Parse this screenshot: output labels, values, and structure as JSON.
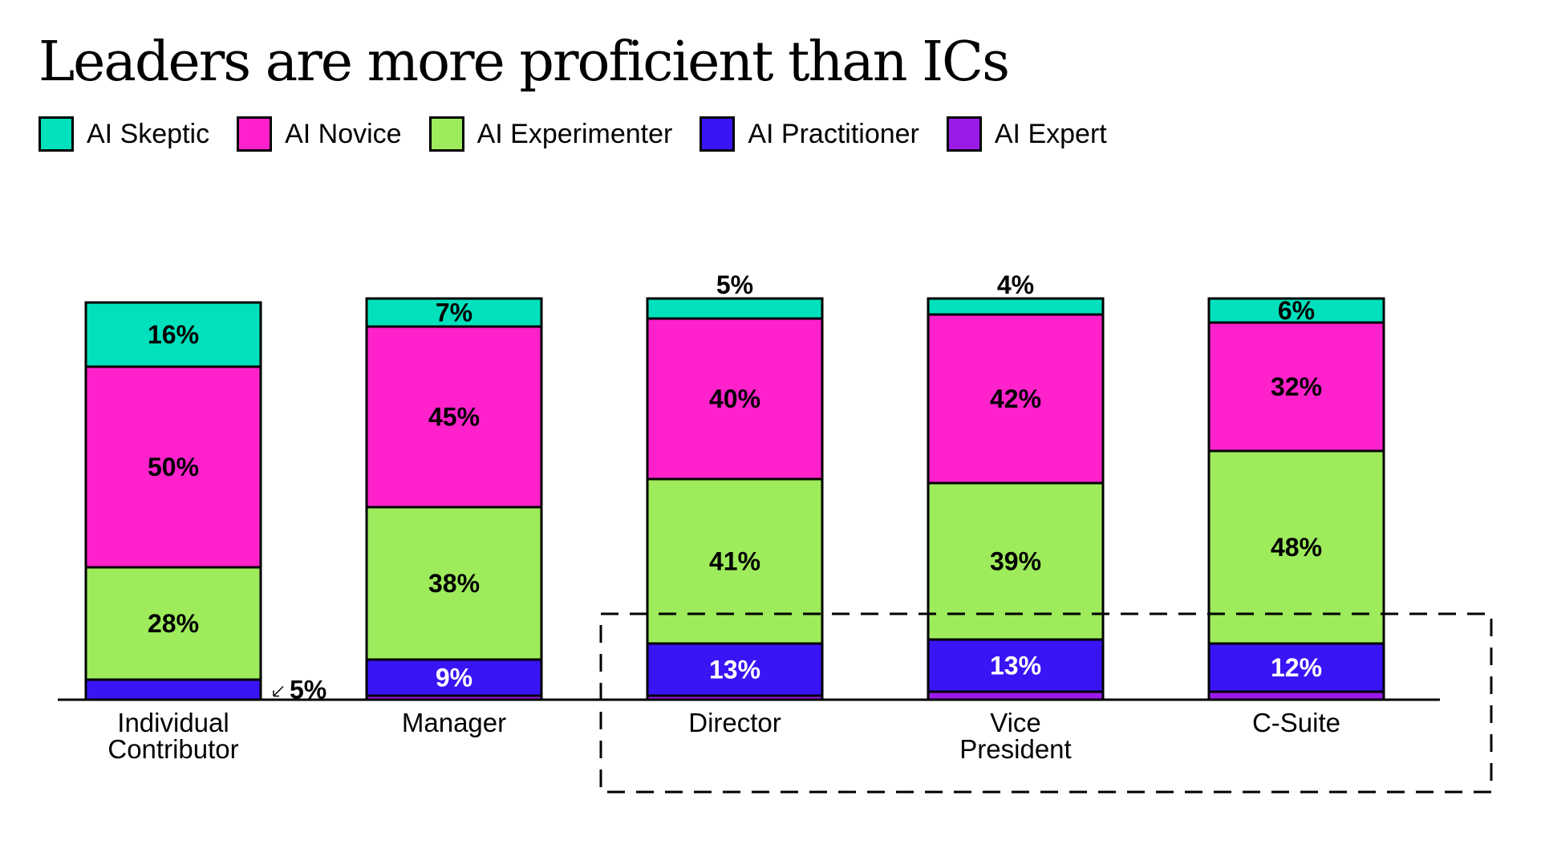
{
  "title": "Leaders are more proficient than ICs",
  "legend": [
    {
      "label": "AI Skeptic",
      "color": "#00E0BC"
    },
    {
      "label": "AI Novice",
      "color": "#FF22CC"
    },
    {
      "label": "AI Experimenter",
      "color": "#9EEB5C"
    },
    {
      "label": "AI Practitioner",
      "color": "#3A14F5"
    },
    {
      "label": "AI Expert",
      "color": "#9A1AE8"
    }
  ],
  "chart_data": {
    "type": "bar",
    "stacked": true,
    "categories": [
      [
        "Individual",
        "Contributor"
      ],
      [
        "Manager"
      ],
      [
        "Director"
      ],
      [
        "Vice",
        "President"
      ],
      [
        "C-Suite"
      ]
    ],
    "series": [
      {
        "name": "AI Expert",
        "color": "#9A1AE8",
        "values": [
          0,
          1,
          1,
          2,
          2
        ],
        "labels": [
          "",
          "",
          "",
          "",
          ""
        ]
      },
      {
        "name": "AI Practitioner",
        "color": "#3A14F5",
        "values": [
          5,
          9,
          13,
          13,
          12
        ],
        "labels": [
          "5%",
          "9%",
          "13%",
          "13%",
          "12%"
        ]
      },
      {
        "name": "AI Experimenter",
        "color": "#9EEB5C",
        "values": [
          28,
          38,
          41,
          39,
          48
        ],
        "labels": [
          "28%",
          "38%",
          "41%",
          "39%",
          "48%"
        ]
      },
      {
        "name": "AI Novice",
        "color": "#FF22CC",
        "values": [
          50,
          45,
          40,
          42,
          32
        ],
        "labels": [
          "50%",
          "45%",
          "40%",
          "42%",
          "32%"
        ]
      },
      {
        "name": "AI Skeptic",
        "color": "#00E0BC",
        "values": [
          16,
          7,
          5,
          4,
          6
        ],
        "labels": [
          "16%",
          "7%",
          "5%",
          "4%",
          "6%"
        ]
      }
    ],
    "ylim": [
      0,
      100
    ],
    "grid": false,
    "legend_position": "top-left",
    "highlight": "dashed box around Director, Vice President and C-Suite practitioner segments"
  }
}
